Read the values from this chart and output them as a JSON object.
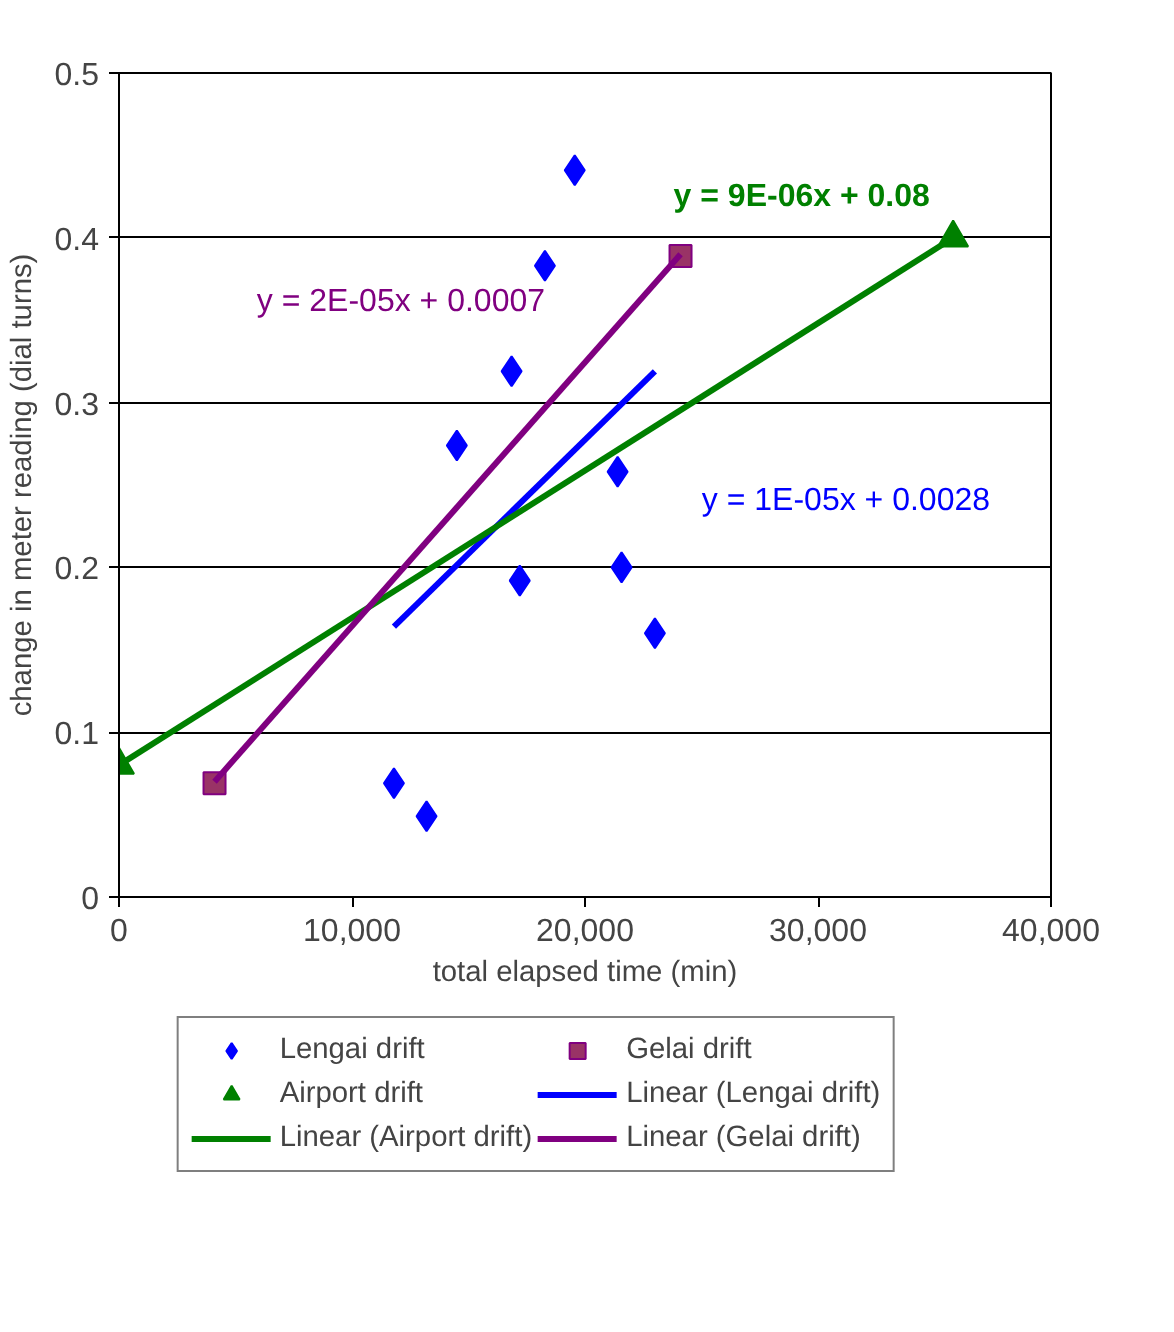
{
  "chart_data": {
    "type": "scatter",
    "xlabel": "total elapsed time (min)",
    "ylabel": "change in meter reading (dial turns)",
    "xlim": [
      0,
      40000
    ],
    "ylim": [
      0,
      0.5
    ],
    "xticks": [
      0,
      {
        "value": 10000,
        "label": "10,000"
      },
      {
        "value": 20000,
        "label": "20,000"
      },
      {
        "value": 30000,
        "label": "30,000"
      },
      {
        "value": 40000,
        "label": "40,000"
      }
    ],
    "yticks": [
      0,
      0.1,
      0.2,
      0.3,
      0.4,
      0.5
    ],
    "grid": "y",
    "legend": "bottom",
    "series": [
      {
        "name": "Lengai drift",
        "marker": "diamond",
        "color": "#0000ff",
        "x": [
          19560,
          18280,
          16850,
          14500,
          21400,
          17200,
          21570,
          23000,
          11800,
          13200
        ],
        "values": [
          0.441,
          0.383,
          0.319,
          0.274,
          0.258,
          0.192,
          0.2,
          0.16,
          0.069,
          0.049
        ]
      },
      {
        "name": "Gelai drift",
        "marker": "square",
        "color": "#993366",
        "x": [
          4100,
          24100
        ],
        "values": [
          0.069,
          0.389
        ]
      },
      {
        "name": "Airport drift",
        "marker": "triangle",
        "color": "#008000",
        "x": [
          0,
          35800
        ],
        "values": [
          0.08,
          0.4
        ]
      },
      {
        "name": "Linear (Lengai drift)",
        "type": "line",
        "marker": "none",
        "color": "#0000ff",
        "x": [
          11800,
          23000
        ],
        "values": [
          0.164,
          0.319
        ]
      },
      {
        "name": "Linear (Airport drift)",
        "type": "line",
        "marker": "none",
        "color": "#008000",
        "x": [
          0,
          35800
        ],
        "values": [
          0.08,
          0.4
        ]
      },
      {
        "name": "Linear (Gelai drift)",
        "type": "line",
        "marker": "none",
        "color": "#800080",
        "x": [
          4100,
          24100
        ],
        "values": [
          0.07,
          0.39
        ]
      }
    ],
    "annotations": [
      "y = 1E-05x + 0.0028",
      "y = 9E-06x + 0.08",
      "y = 2E-05x + 0.0007"
    ]
  }
}
